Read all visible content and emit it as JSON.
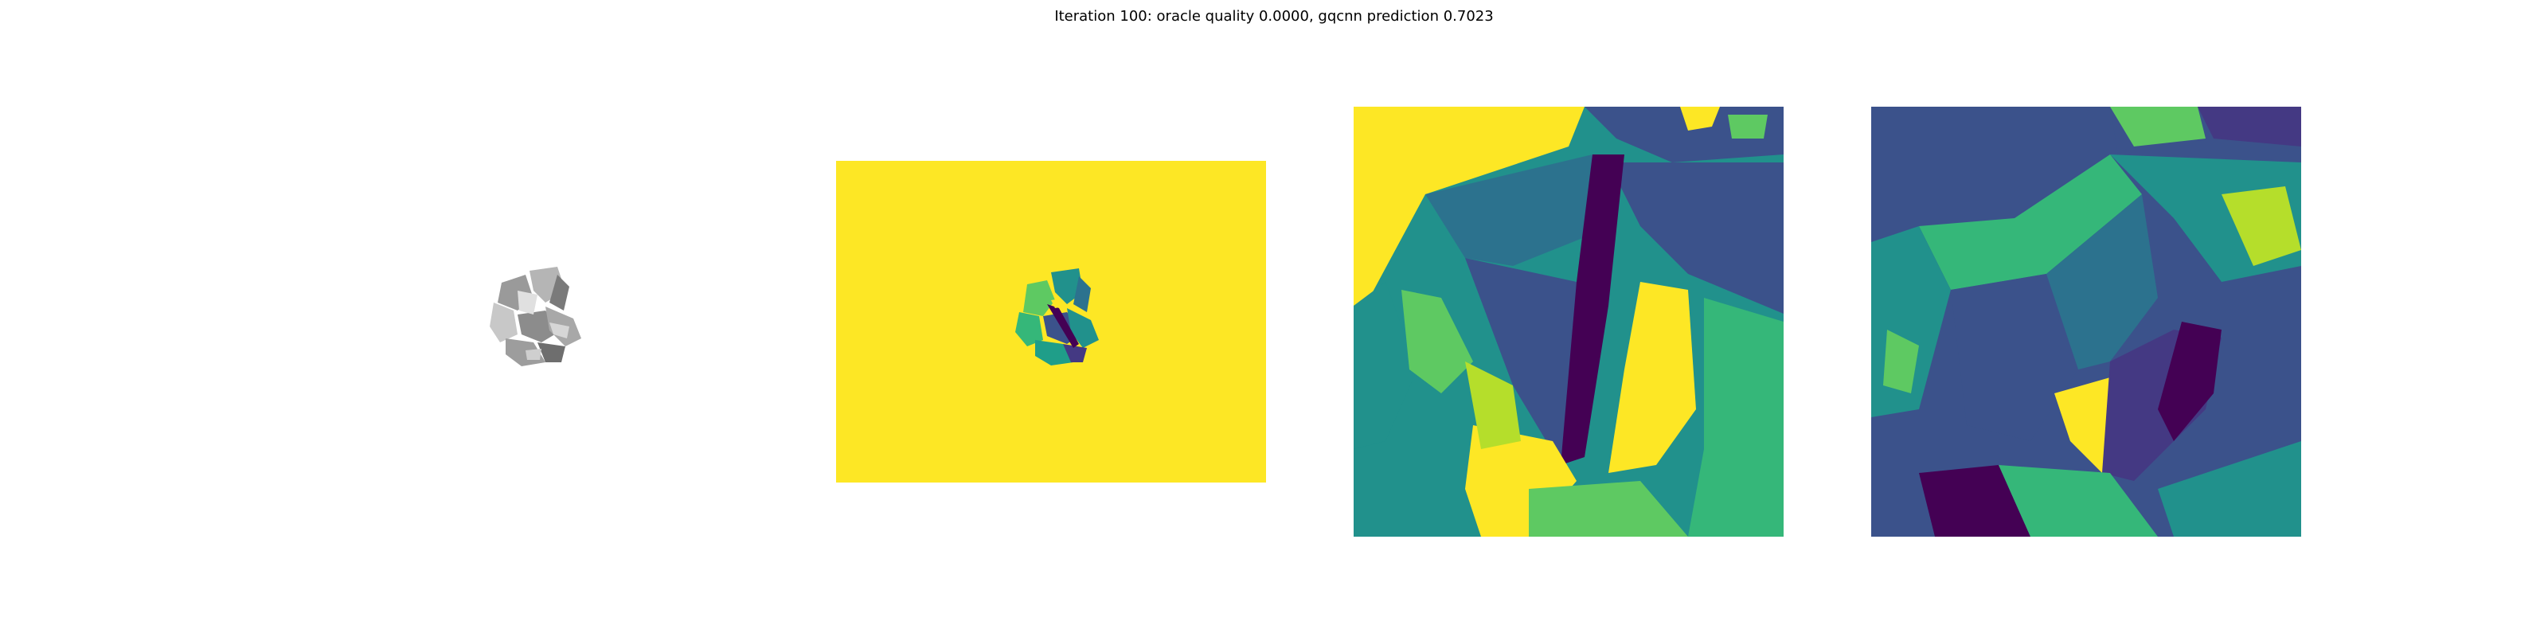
{
  "figure": {
    "title": "Iteration 100: oracle quality 0.0000, gqcnn prediction 0.7023"
  },
  "panels": [
    {
      "name": "object-render",
      "colormap": "gray"
    },
    {
      "name": "depth-image",
      "colormap": "viridis",
      "background": "#fde725"
    },
    {
      "name": "depth-crop",
      "colormap": "viridis"
    },
    {
      "name": "depth-crop-rotated",
      "colormap": "viridis"
    }
  ],
  "palette": {
    "viridis_dark": "#440154",
    "viridis_blue": "#3b528b",
    "viridis_teal": "#21918c",
    "viridis_green": "#5ec962",
    "viridis_yellow": "#fde725"
  }
}
